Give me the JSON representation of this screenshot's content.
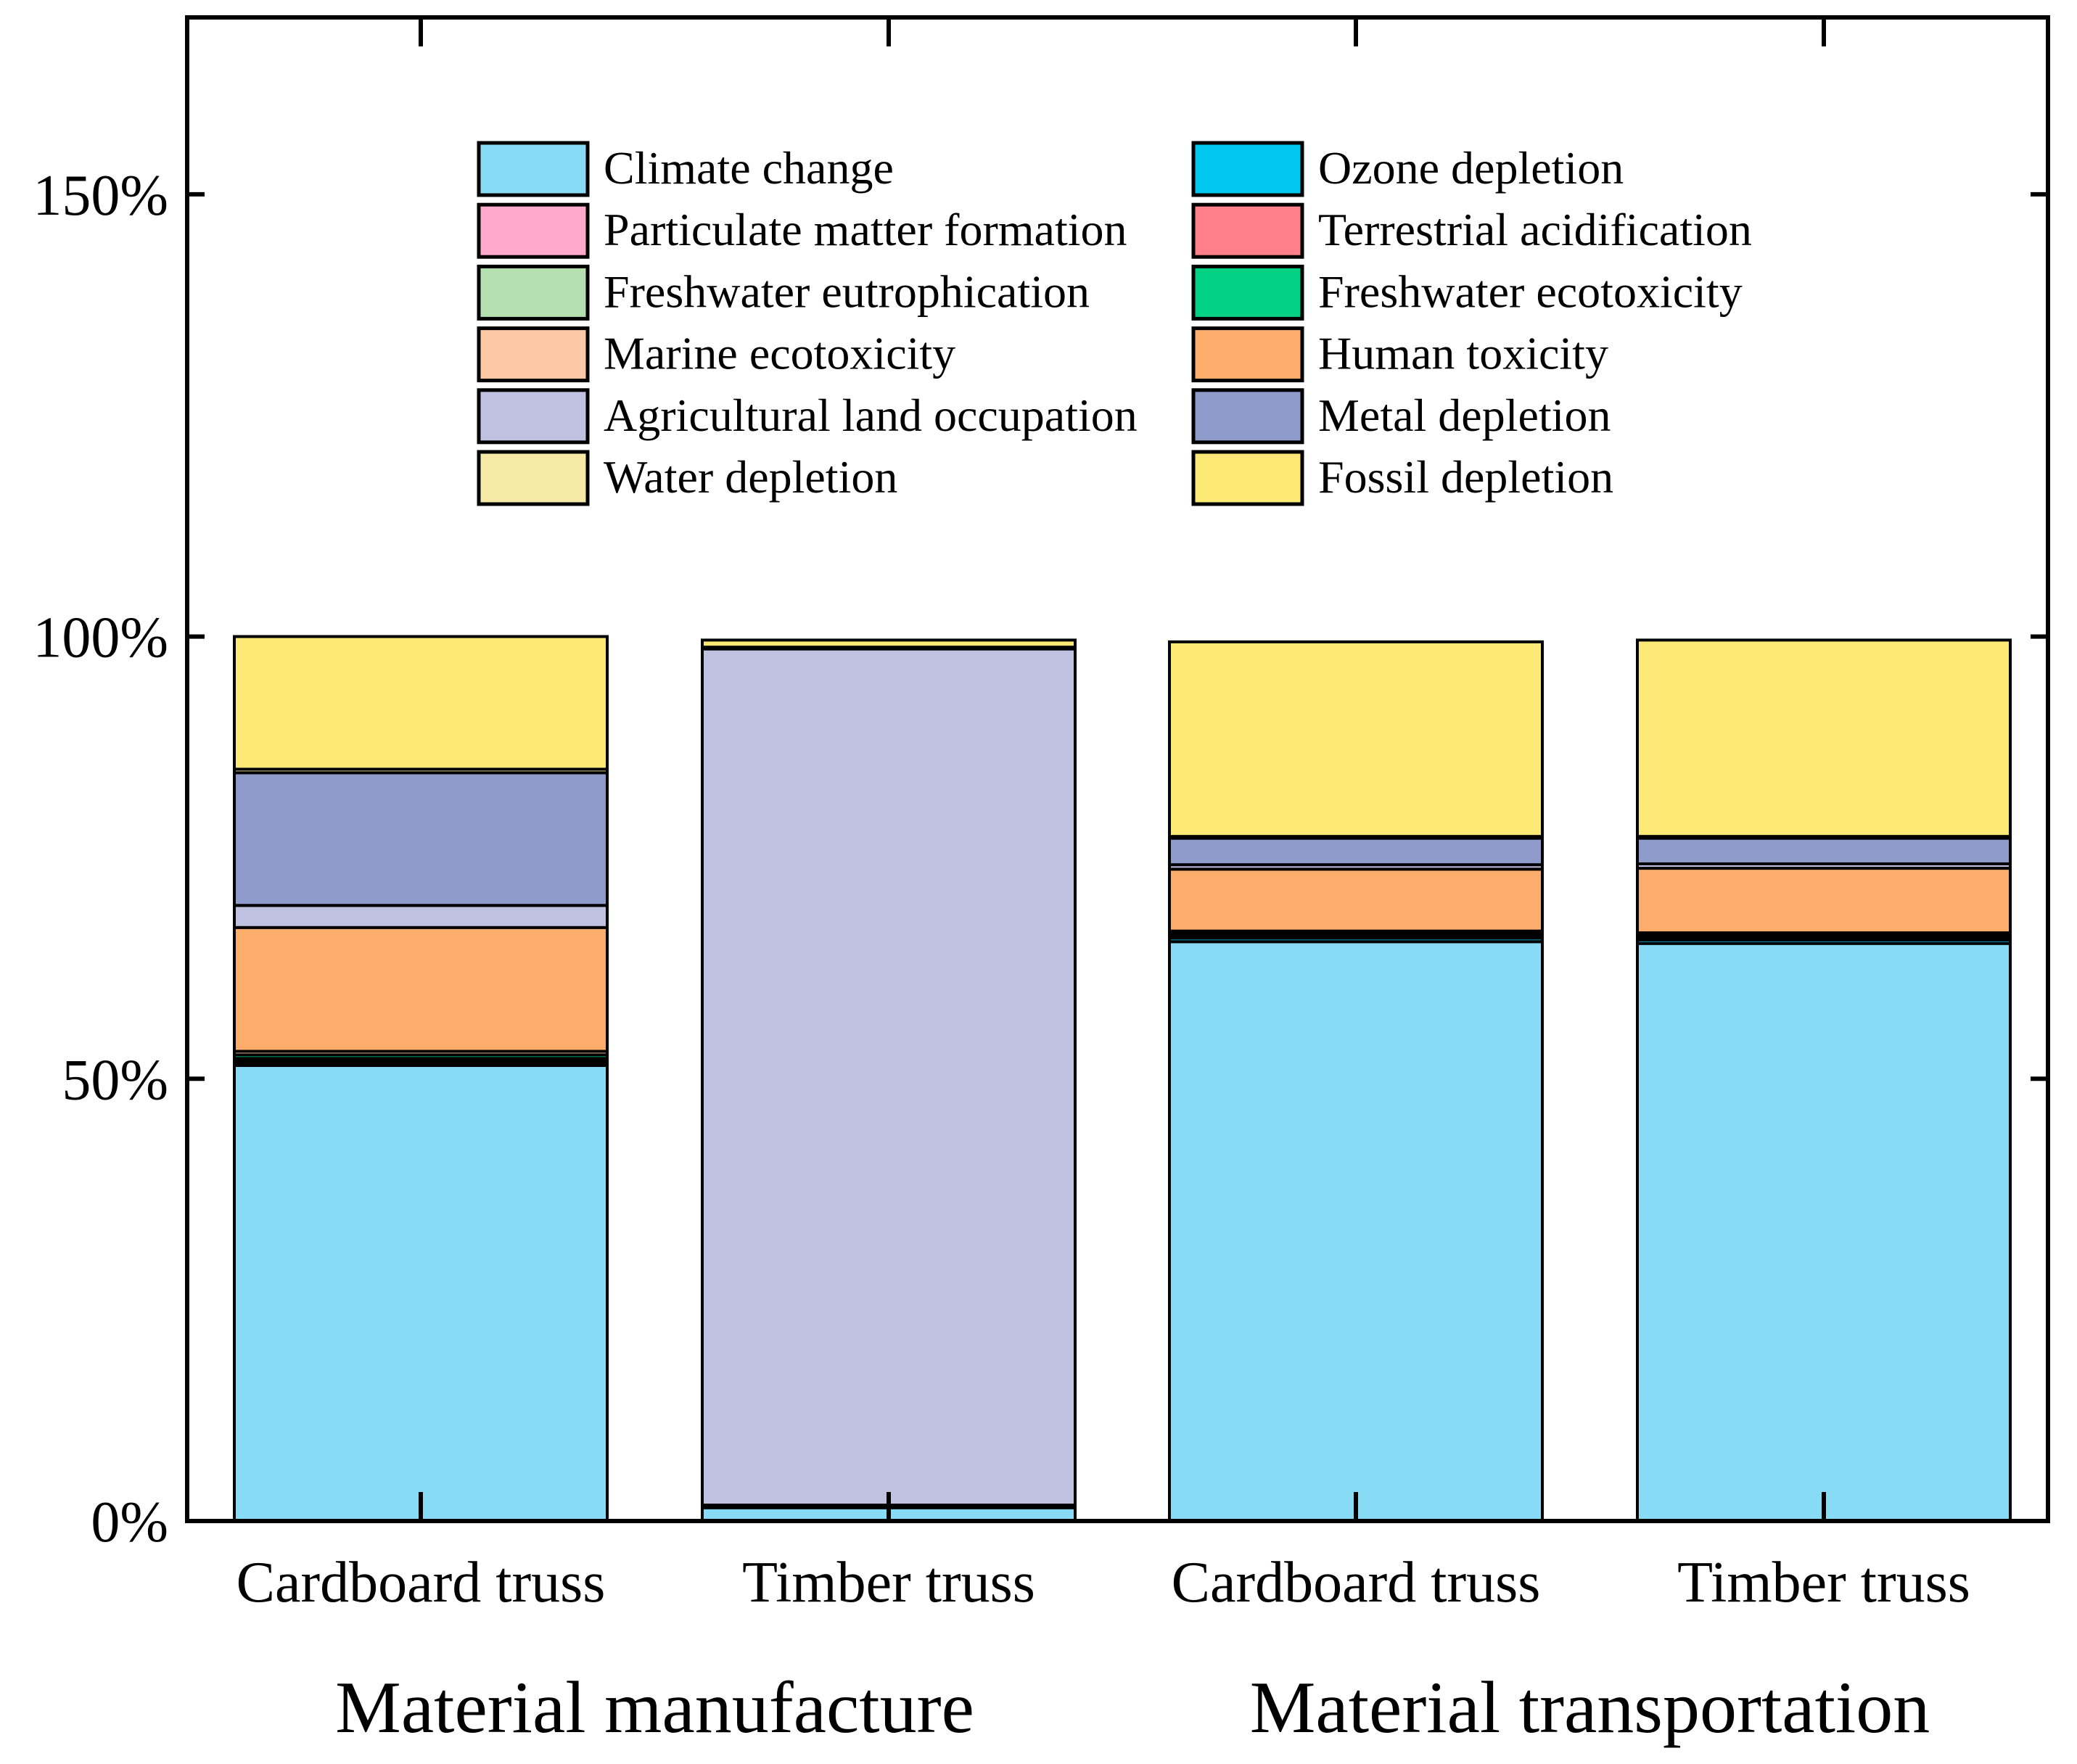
{
  "chart_data": {
    "type": "stacked-bar",
    "title": "",
    "xlabel": "",
    "ylabel": "",
    "ylim": [
      0,
      1.7
    ],
    "y_ticks": [
      {
        "value": 0,
        "label": "0%"
      },
      {
        "value": 0.5,
        "label": "50%"
      },
      {
        "value": 1.0,
        "label": "100%"
      },
      {
        "value": 1.5,
        "label": "150%"
      }
    ],
    "groups": [
      {
        "label": "Material manufacture",
        "bar_indices": [
          0,
          1
        ]
      },
      {
        "label": "Material transportation",
        "bar_indices": [
          2,
          3
        ]
      }
    ],
    "categories": [
      "Cardboard truss",
      "Timber truss",
      "Cardboard truss",
      "Timber truss"
    ],
    "legend_position": "top-center",
    "series": [
      {
        "name": "Climate change",
        "color": "#87dbf4",
        "values": [
          0.515,
          0.015,
          0.655,
          0.653
        ]
      },
      {
        "name": "Ozone depletion",
        "color": "#00c8f0",
        "values": [
          0.002,
          0.002,
          0.004,
          0.004
        ]
      },
      {
        "name": "Particulate matter formation",
        "color": "#ffaacc",
        "values": [
          0.001,
          0.0,
          0.002,
          0.002
        ]
      },
      {
        "name": "Terrestrial acidification",
        "color": "#ff808a",
        "values": [
          0.002,
          0.001,
          0.003,
          0.003
        ]
      },
      {
        "name": "Freshwater eutrophication",
        "color": "#b5e0b0",
        "values": [
          0.003,
          0.0,
          0.001,
          0.001
        ]
      },
      {
        "name": "Freshwater ecotoxicity",
        "color": "#00d184",
        "values": [
          0.004,
          0.0,
          0.001,
          0.001
        ]
      },
      {
        "name": "Marine ecotoxicity",
        "color": "#fdc8a5",
        "values": [
          0.004,
          0.0,
          0.001,
          0.001
        ]
      },
      {
        "name": "Human toxicity",
        "color": "#fcad6c",
        "values": [
          0.14,
          0.0,
          0.07,
          0.073
        ]
      },
      {
        "name": "Agricultural land occupation",
        "color": "#c0c2e1",
        "values": [
          0.025,
          0.968,
          0.005,
          0.005
        ]
      },
      {
        "name": "Metal depletion",
        "color": "#8e9bcb",
        "values": [
          0.15,
          0.002,
          0.03,
          0.029
        ]
      },
      {
        "name": "Water depletion",
        "color": "#f7eaa6",
        "values": [
          0.004,
          0.0,
          0.002,
          0.002
        ]
      },
      {
        "name": "Fossil depletion",
        "color": "#fdea76",
        "values": [
          0.15,
          0.008,
          0.22,
          0.222
        ]
      }
    ]
  }
}
